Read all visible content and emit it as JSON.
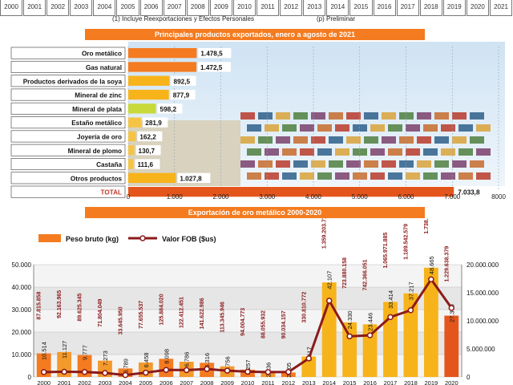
{
  "colors": {
    "accent": "#f47b20",
    "dark_red": "#8b1a1a",
    "gold": "#f7b31a",
    "yellow_green": "#c9d93a",
    "total_bar": "#e4551c"
  },
  "header": {
    "years": [
      "2000",
      "2001",
      "2002",
      "2003",
      "2004",
      "2005",
      "2006",
      "2007",
      "2008",
      "2009",
      "2010",
      "2011",
      "2012",
      "2013",
      "2014",
      "2015",
      "2016",
      "2017",
      "2018",
      "2019",
      "2020",
      "2021"
    ],
    "note_left": "(1) Incluye Reexportaciones y Efectos Personales",
    "note_right": "(p) Preliminar"
  },
  "chart_data": [
    {
      "type": "bar",
      "orientation": "horizontal",
      "title": "Principales productos exportados, enero a agosto de 2021",
      "categories": [
        "Oro metálico",
        "Gas natural",
        "Productos derivados de la soya",
        "Mineral de zinc",
        "Mineral de plata",
        "Estaño metálico",
        "Joyería de oro",
        "Mineral de plomo",
        "Castaña",
        "Otros productos",
        "TOTAL"
      ],
      "values": [
        1478.5,
        1472.5,
        892.5,
        877.9,
        598.2,
        281.9,
        162.2,
        130.7,
        111.6,
        1027.8,
        7033.8
      ],
      "value_labels": [
        "1.478,5",
        "1.472,5",
        "892,5",
        "877,9",
        "598,2",
        "281,9",
        "162,2",
        "130,7",
        "111,6",
        "1.027,8",
        "7.033,8"
      ],
      "xlim": [
        0,
        8000
      ],
      "xticks": [
        "0",
        "1.000",
        "2.000",
        "3.000",
        "4.000",
        "5.000",
        "6.000",
        "7.000",
        "8000"
      ]
    },
    {
      "type": "bar",
      "combo": "bar+line",
      "title": "Exportación de oro metálico 2000-2020",
      "categories": [
        "2000",
        "2001",
        "2002",
        "2003",
        "2004",
        "2005",
        "2006",
        "2007",
        "2008",
        "2009",
        "2010",
        "2011",
        "2012",
        "2013",
        "2014",
        "2015",
        "2016",
        "2017",
        "2018",
        "2019",
        "2020"
      ],
      "series": [
        {
          "name": "Peso bruto (kg)",
          "type": "bar",
          "axis": "left",
          "values": [
            10514,
            11127,
            9777,
            7273,
            3789,
            6458,
            8098,
            6786,
            6316,
            4756,
            3257,
            2136,
            2005,
            9117,
            42107,
            24330,
            23446,
            33414,
            37217,
            48665,
            27309
          ],
          "labels": [
            "10.514",
            "11.127",
            "9.777",
            "7.273",
            "3.789",
            "6.458",
            "8.098",
            "6.786",
            "6.316",
            "4.756",
            "3.257",
            "2.136",
            "2.005",
            "9.117",
            "42.107",
            "24.330",
            "23.446",
            "33.414",
            "37.217",
            "48.665",
            "27.309"
          ]
        },
        {
          "name": "Valor FOB ($us)",
          "type": "line",
          "axis": "right",
          "values": [
            87815858,
            92163965,
            89625345,
            71804049,
            33645950,
            77655537,
            125884020,
            122412451,
            141622986,
            113345946,
            94004773,
            88055932,
            90034157,
            330810772,
            1359203714,
            723880158,
            742366051,
            1065971885,
            1189542579,
            1738981061,
            1229638379
          ],
          "labels": [
            "87.815.858",
            "92.163.965",
            "89.625.345",
            "71.804.049",
            "33.645.950",
            "77.655.537",
            "125.884.020",
            "122.412.451",
            "141.622.986",
            "113.345.946",
            "94.004.773",
            "88.055.932",
            "90.034.157",
            "330.810.772",
            "1.359.203.714",
            "723.880.158",
            "742.366.051",
            "1.065.971.885",
            "1.189.542.579",
            "1.738.981.061",
            "1.229.638.379"
          ]
        }
      ],
      "ylim_left": [
        0,
        50000
      ],
      "yticks_left": [
        "0",
        "10.000",
        "20.000",
        "30.000",
        "40.000",
        "50.000"
      ],
      "ylim_right": [
        0,
        2000000000
      ],
      "yticks_right": [
        "0",
        "5.000.000",
        "10.000.000",
        "15.000.000",
        "20.000.000"
      ]
    }
  ]
}
